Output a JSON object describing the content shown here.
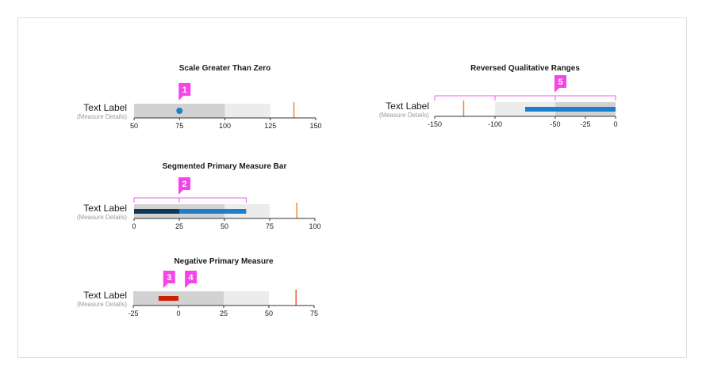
{
  "chart_data": [
    {
      "type": "bullet",
      "title": "Scale Greater Than Zero",
      "label": "Text Label",
      "sublabel": "(Measure Details)",
      "scale": [
        50,
        150
      ],
      "ticks": [
        50,
        75,
        100,
        125,
        150
      ],
      "ranges": [
        {
          "from": 50,
          "to": 100,
          "color": "#d2d2d2"
        },
        {
          "from": 100,
          "to": 125,
          "color": "#ececec"
        }
      ],
      "measures": [],
      "marker": {
        "value": 75,
        "shape": "dot",
        "color": "#1b7fd0"
      },
      "target": {
        "value": 138,
        "color": "#f08a2a"
      },
      "callouts": [
        {
          "number": "1",
          "at": 75
        }
      ]
    },
    {
      "type": "bullet",
      "title": "Segmented Primary Measure Bar",
      "label": "Text Label",
      "sublabel": "(Measure Details)",
      "scale": [
        0,
        100
      ],
      "ticks": [
        0,
        25,
        50,
        75,
        100
      ],
      "ranges": [
        {
          "from": 0,
          "to": 50,
          "color": "#d2d2d2"
        },
        {
          "from": 50,
          "to": 75,
          "color": "#ececec"
        }
      ],
      "measures": [
        {
          "from": 0,
          "to": 25,
          "color": "#0b3a5a"
        },
        {
          "from": 25,
          "to": 62,
          "color": "#1b7fd0"
        }
      ],
      "bracket": {
        "from": 0,
        "to": 62,
        "mark": 25,
        "color": "#e85ee8"
      },
      "target": {
        "value": 90,
        "color": "#f08a2a"
      },
      "callouts": [
        {
          "number": "2",
          "at": 25
        }
      ]
    },
    {
      "type": "bullet",
      "title": "Negative Primary Measure",
      "label": "Text Label",
      "sublabel": "(Measure Details)",
      "scale": [
        -25,
        75
      ],
      "ticks": [
        -25,
        0,
        25,
        50,
        75
      ],
      "ranges": [
        {
          "from": -25,
          "to": 25,
          "color": "#d2d2d2"
        },
        {
          "from": 25,
          "to": 50,
          "color": "#ececec"
        }
      ],
      "measures": [
        {
          "from": -11,
          "to": 0,
          "color": "#cc2200"
        }
      ],
      "target": {
        "value": 65,
        "color": "#ea5a3a"
      },
      "callouts": [
        {
          "number": "3",
          "at": -8
        },
        {
          "number": "4",
          "at": 4
        }
      ]
    },
    {
      "type": "bullet",
      "title": "Reversed Qualitative Ranges",
      "label": "Text Label",
      "sublabel": "(Measure Details)",
      "scale": [
        -150,
        0
      ],
      "ticks": [
        -150,
        -100,
        -50,
        -25,
        0
      ],
      "ranges": [
        {
          "from": -100,
          "to": -50,
          "color": "#ececec"
        },
        {
          "from": -50,
          "to": 0,
          "color": "#d2d2d2"
        }
      ],
      "measures": [
        {
          "from": -75,
          "to": 0,
          "color": "#1b7fd0"
        }
      ],
      "bracket": {
        "from": -150,
        "to": 0,
        "marks": [
          -100,
          -50
        ],
        "color": "#e85ee8"
      },
      "target": {
        "value": -126,
        "color": "#f08a2a"
      },
      "callouts": [
        {
          "number": "5",
          "at": -50
        }
      ]
    }
  ],
  "colors": {
    "callout": "#f545e8",
    "axis": "#333333"
  }
}
